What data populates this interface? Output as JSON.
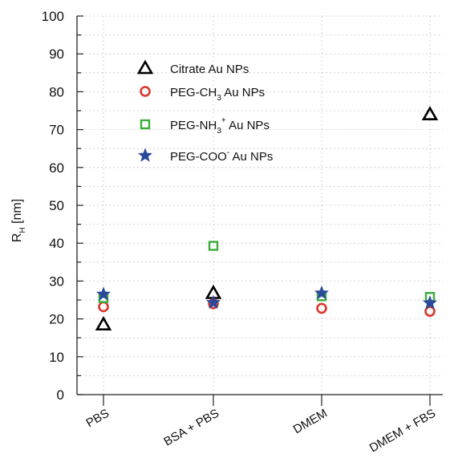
{
  "chart_data": {
    "type": "scatter",
    "categories": [
      "PBS",
      "BSA + PBS",
      "DMEM",
      "DMEM + FBS"
    ],
    "ylabel": "R",
    "ylabel_subscript": "H",
    "ylabel_unit": " [nm]",
    "ylim": [
      0,
      100
    ],
    "yticks": [
      0,
      10,
      20,
      30,
      40,
      50,
      60,
      70,
      80,
      90,
      100
    ],
    "grid": "dotted vertical and horizontal",
    "legend_position": "upper-left",
    "series": [
      {
        "name": "Citrate Au NPs",
        "legend": [
          "Citrate Au NPs",
          "",
          ""
        ],
        "marker": "triangle",
        "color": "#000000",
        "values": [
          18.5,
          26.8,
          null,
          74.0
        ]
      },
      {
        "name": "PEG-CH3 Au NPs",
        "legend": [
          "PEG-CH",
          "3",
          " Au NPs"
        ],
        "marker": "circle",
        "color": "#d9372b",
        "values": [
          23.2,
          24.0,
          22.8,
          22.0
        ]
      },
      {
        "name": "PEG-NH3+ Au NPs",
        "legend": [
          "PEG-NH",
          "3",
          "+ Au NPs"
        ],
        "marker": "square",
        "color": "#3aae3a",
        "values": [
          25.5,
          39.3,
          26.0,
          25.8
        ]
      },
      {
        "name": "PEG-COO- Au NPs",
        "legend": [
          "PEG-COO",
          "",
          "- Au NPs"
        ],
        "marker": "star",
        "color": "#2b4a9b",
        "values": [
          26.5,
          24.3,
          26.8,
          24.2
        ]
      }
    ]
  }
}
